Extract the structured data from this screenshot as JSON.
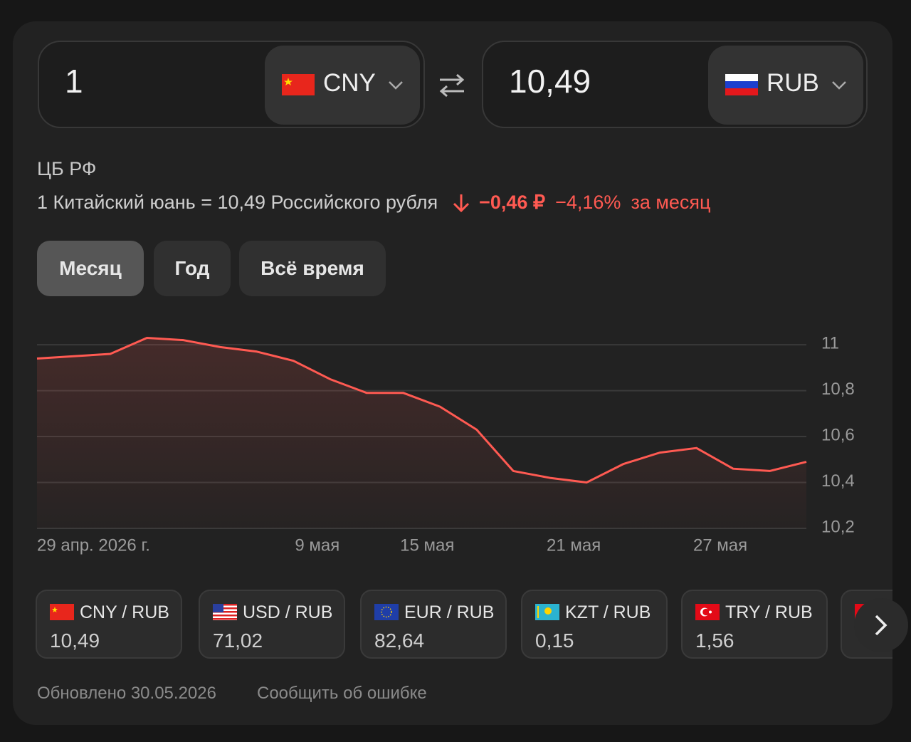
{
  "converter": {
    "from_amount": "1",
    "from_currency": "CNY",
    "to_amount": "10,49",
    "to_currency": "RUB"
  },
  "source": "ЦБ РФ",
  "rate": {
    "text": "1 Китайский юань = 10,49 Российского рубля",
    "change": "−0,46 ₽",
    "percent": "−4,16%",
    "period": "за месяц"
  },
  "tabs": [
    "Месяц",
    "Год",
    "Всё время"
  ],
  "chart_data": {
    "type": "line",
    "categories": [
      "29 апр. 2026 г.",
      null,
      null,
      null,
      null,
      null,
      null,
      null,
      "9 мая",
      null,
      null,
      "15 мая",
      null,
      null,
      null,
      "21 мая",
      null,
      null,
      null,
      "27 мая",
      null,
      null
    ],
    "series": [
      {
        "name": "CNY / RUB",
        "color": "#ff5a52",
        "values": [
          10.94,
          10.95,
          10.96,
          11.03,
          11.02,
          10.99,
          10.97,
          10.93,
          10.85,
          10.79,
          10.79,
          10.73,
          10.63,
          10.45,
          10.42,
          10.4,
          10.48,
          10.53,
          10.55,
          10.46,
          10.45,
          10.49
        ]
      }
    ],
    "ylim": [
      10.2,
      11.05
    ],
    "yticks": [
      {
        "value": 10.2,
        "label": "10,2"
      },
      {
        "value": 10.4,
        "label": "10,4"
      },
      {
        "value": 10.6,
        "label": "10,6"
      },
      {
        "value": 10.8,
        "label": "10,8"
      },
      11
    ],
    "grid": true
  },
  "pairs": [
    {
      "name": "CNY / RUB",
      "value": "10,49"
    },
    {
      "name": "USD / RUB",
      "value": "71,02"
    },
    {
      "name": "EUR / RUB",
      "value": "82,64"
    },
    {
      "name": "KZT / RUB",
      "value": "0,15"
    },
    {
      "name": "TRY / RUB",
      "value": "1,56"
    }
  ],
  "footer": {
    "updated": "Обновлено 30.05.2026",
    "report": "Сообщить об ошибке"
  }
}
